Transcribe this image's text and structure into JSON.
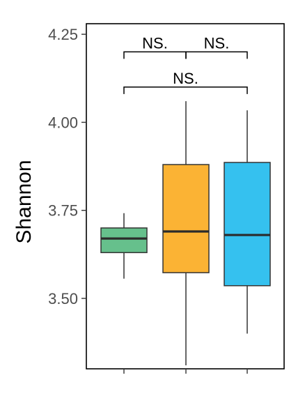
{
  "chart_data": {
    "type": "box",
    "ylabel": "Shannon",
    "categories": [
      "",
      "",
      ""
    ],
    "ylim": [
      3.3,
      4.28
    ],
    "y_ticks": [
      3.5,
      3.75,
      4.0,
      4.25
    ],
    "y_tick_labels": [
      "3.50",
      "3.75",
      "4.00",
      "4.25"
    ],
    "boxes": [
      {
        "min": 3.556,
        "q1": 3.63,
        "median": 3.67,
        "q3": 3.7,
        "max": 3.742,
        "color": "#66c08c"
      },
      {
        "min": 3.31,
        "q1": 3.573,
        "median": 3.69,
        "q3": 3.88,
        "max": 4.06,
        "color": "#fbb334"
      },
      {
        "min": 3.4,
        "q1": 3.536,
        "median": 3.68,
        "q3": 3.886,
        "max": 4.034,
        "color": "#35c1ef"
      }
    ],
    "significance": [
      {
        "from": 0,
        "to": 1,
        "label": "NS.",
        "y": 4.2
      },
      {
        "from": 1,
        "to": 2,
        "label": "NS.",
        "y": 4.2
      },
      {
        "from": 0,
        "to": 2,
        "label": "NS.",
        "y": 4.1
      }
    ],
    "grid": false,
    "legend": "none"
  }
}
